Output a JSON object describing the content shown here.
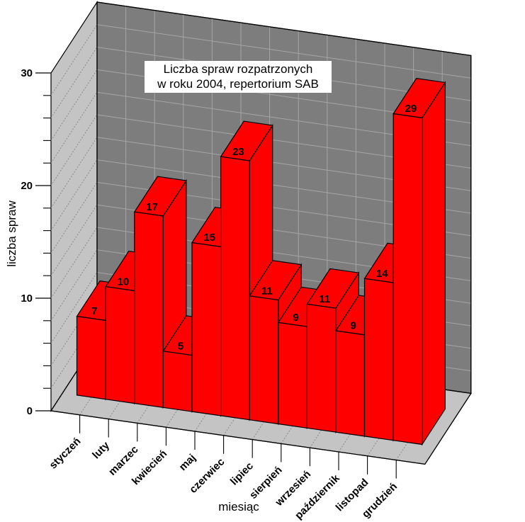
{
  "title": {
    "line1": "Liczba spraw rozpatrzonych",
    "line2": "w roku 2004, repertorium SAB"
  },
  "axes": {
    "y_label": "liczba spraw",
    "x_label": "miesiąc"
  },
  "chart_data": {
    "type": "bar",
    "projection": "3d",
    "title": "Liczba spraw rozpatrzonych w roku 2004, repertorium SAB",
    "xlabel": "miesiąc",
    "ylabel": "liczba spraw",
    "categories": [
      "styczeń",
      "luty",
      "marzec",
      "kwiecień",
      "maj",
      "czerwiec",
      "lipiec",
      "sierpień",
      "wrzesień",
      "październik",
      "listopad",
      "grudzień"
    ],
    "values": [
      7,
      10,
      17,
      5,
      15,
      23,
      11,
      9,
      11,
      9,
      14,
      29
    ],
    "ylim": [
      0,
      30
    ],
    "y_major_ticks": [
      0,
      10,
      20,
      30
    ],
    "y_minor_step": 2,
    "grid": true,
    "legend": false,
    "colors": {
      "bar": "#ff0000",
      "outline": "#000000",
      "back_wall": "#7d7d7d",
      "wall_grid": "#a5a5a5",
      "side_wall": "#c4c4c4",
      "floor": "#c4c4c4",
      "dotted_grid": "#8a8a8a",
      "background": "#ffffff",
      "text": "#000000"
    }
  }
}
